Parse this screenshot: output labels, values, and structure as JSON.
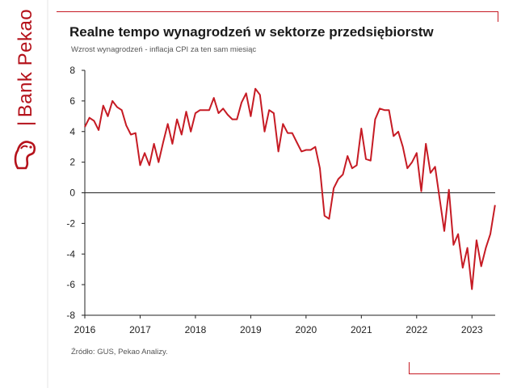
{
  "brand": {
    "name": "Bank Pekao"
  },
  "chart_data": {
    "type": "line",
    "title": "Realne tempo wynagrodzeń w sektorze przedsiębiorstw",
    "subtitle": "Wzrost wynagrodzeń  - inflacja CPI za ten sam miesiąc",
    "source": "Źródło: GUS, Pekao Analizy.",
    "x_unit": "year (monthly data)",
    "ylim": [
      -8,
      8
    ],
    "xlim": [
      2016,
      2023.42
    ],
    "y_ticks": [
      "8",
      "6",
      "4",
      "2",
      "0",
      "-2",
      "-4",
      "-6",
      "-8"
    ],
    "x_ticks": [
      "2016",
      "2017",
      "2018",
      "2019",
      "2020",
      "2021",
      "2022",
      "2023"
    ],
    "grid": false,
    "zero_line": true,
    "series": [
      {
        "color": "#c61b24",
        "x": [
          2016.0,
          2016.083,
          2016.167,
          2016.25,
          2016.333,
          2016.417,
          2016.5,
          2016.583,
          2016.667,
          2016.75,
          2016.833,
          2016.917,
          2017.0,
          2017.083,
          2017.167,
          2017.25,
          2017.333,
          2017.417,
          2017.5,
          2017.583,
          2017.667,
          2017.75,
          2017.833,
          2017.917,
          2018.0,
          2018.083,
          2018.167,
          2018.25,
          2018.333,
          2018.417,
          2018.5,
          2018.583,
          2018.667,
          2018.75,
          2018.833,
          2018.917,
          2019.0,
          2019.083,
          2019.167,
          2019.25,
          2019.333,
          2019.417,
          2019.5,
          2019.583,
          2019.667,
          2019.75,
          2019.833,
          2019.917,
          2020.0,
          2020.083,
          2020.167,
          2020.25,
          2020.333,
          2020.417,
          2020.5,
          2020.583,
          2020.667,
          2020.75,
          2020.833,
          2020.917,
          2021.0,
          2021.083,
          2021.167,
          2021.25,
          2021.333,
          2021.417,
          2021.5,
          2021.583,
          2021.667,
          2021.75,
          2021.833,
          2021.917,
          2022.0,
          2022.083,
          2022.167,
          2022.25,
          2022.333,
          2022.417,
          2022.5,
          2022.583,
          2022.667,
          2022.75,
          2022.833,
          2022.917,
          2023.0,
          2023.083,
          2023.167,
          2023.25,
          2023.333,
          2023.417
        ],
        "y": [
          4.3,
          4.9,
          4.7,
          4.1,
          5.7,
          5.0,
          6.0,
          5.6,
          5.4,
          4.4,
          3.8,
          3.9,
          1.8,
          2.6,
          1.8,
          3.2,
          2.0,
          3.3,
          4.5,
          3.2,
          4.8,
          3.8,
          5.3,
          4.0,
          5.2,
          5.4,
          5.4,
          5.4,
          6.2,
          5.2,
          5.5,
          5.1,
          4.8,
          4.8,
          5.9,
          6.5,
          5.0,
          6.8,
          6.4,
          4.0,
          5.4,
          5.2,
          2.7,
          4.5,
          3.9,
          3.9,
          3.3,
          2.7,
          2.8,
          2.8,
          3.0,
          1.6,
          -1.5,
          -1.7,
          0.3,
          0.9,
          1.2,
          2.4,
          1.6,
          1.8,
          4.2,
          2.2,
          2.1,
          4.8,
          5.5,
          5.4,
          5.4,
          3.7,
          4.0,
          3.0,
          1.6,
          2.0,
          2.6,
          0.1,
          3.2,
          1.3,
          1.7,
          -0.4,
          -2.5,
          0.2,
          -3.4,
          -2.7,
          -4.9,
          -3.6,
          -6.3,
          -3.1,
          -4.8,
          -3.6,
          -2.7,
          -0.8
        ]
      }
    ]
  }
}
